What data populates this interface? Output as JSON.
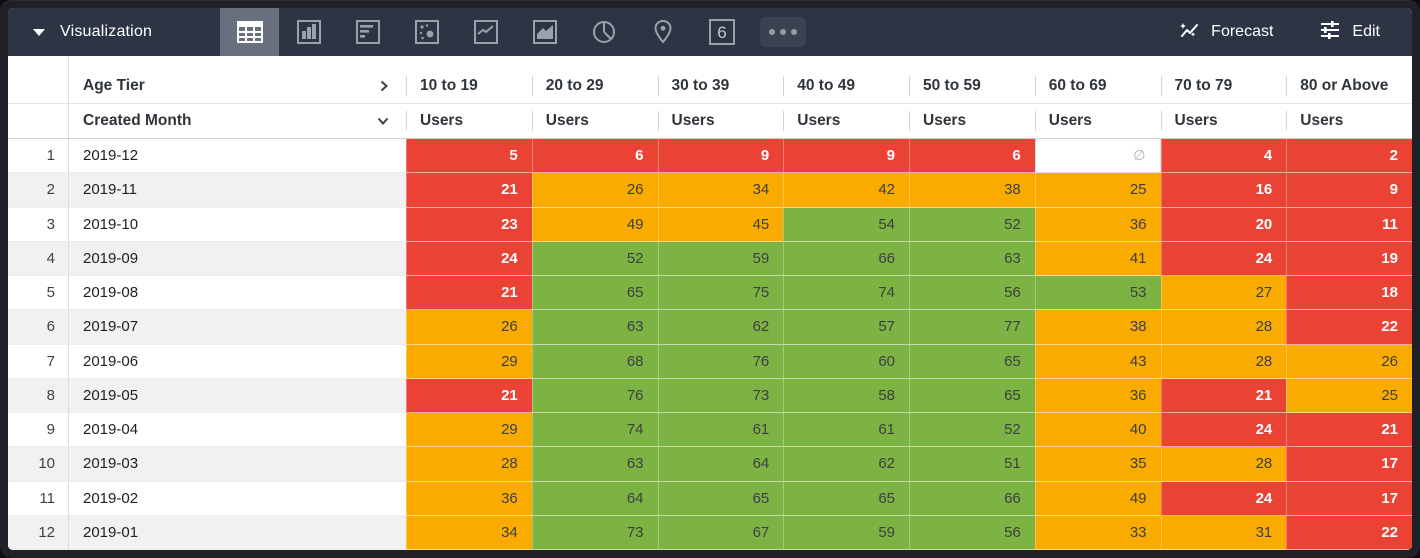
{
  "toolbar": {
    "title": "Visualization",
    "forecast_label": "Forecast",
    "edit_label": "Edit",
    "single_value_icon_number": "6",
    "chart_types": [
      "table",
      "bar",
      "horizontal-bar",
      "scatter",
      "line",
      "area",
      "pie",
      "map",
      "single-value",
      "more"
    ],
    "selected_chart_type": "table"
  },
  "colors": {
    "red": "#ea4335",
    "orange": "#f9ab00",
    "green": "#7cb342",
    "toolbar_bg": "#2d3444",
    "selected_tab_bg": "#68707e"
  },
  "table": {
    "row_dimension_label": "Age Tier",
    "column_dimension_label": "Created Month",
    "measure_label": "Users",
    "null_symbol": "∅",
    "columns": [
      "10 to 19",
      "20 to 29",
      "30 to 39",
      "40 to 49",
      "50 to 59",
      "60 to 69",
      "70 to 79",
      "80 or Above"
    ],
    "rows": [
      {
        "index": "1",
        "month": "2019-12",
        "cells": [
          {
            "v": "5",
            "c": "red"
          },
          {
            "v": "6",
            "c": "red"
          },
          {
            "v": "9",
            "c": "red"
          },
          {
            "v": "9",
            "c": "red"
          },
          {
            "v": "6",
            "c": "red"
          },
          {
            "v": "",
            "c": "null"
          },
          {
            "v": "4",
            "c": "red"
          },
          {
            "v": "2",
            "c": "red"
          }
        ]
      },
      {
        "index": "2",
        "month": "2019-11",
        "cells": [
          {
            "v": "21",
            "c": "red"
          },
          {
            "v": "26",
            "c": "orange"
          },
          {
            "v": "34",
            "c": "orange"
          },
          {
            "v": "42",
            "c": "orange"
          },
          {
            "v": "38",
            "c": "orange"
          },
          {
            "v": "25",
            "c": "orange"
          },
          {
            "v": "16",
            "c": "red"
          },
          {
            "v": "9",
            "c": "red"
          }
        ]
      },
      {
        "index": "3",
        "month": "2019-10",
        "cells": [
          {
            "v": "23",
            "c": "red"
          },
          {
            "v": "49",
            "c": "orange"
          },
          {
            "v": "45",
            "c": "orange"
          },
          {
            "v": "54",
            "c": "green"
          },
          {
            "v": "52",
            "c": "green"
          },
          {
            "v": "36",
            "c": "orange"
          },
          {
            "v": "20",
            "c": "red"
          },
          {
            "v": "11",
            "c": "red"
          }
        ]
      },
      {
        "index": "4",
        "month": "2019-09",
        "cells": [
          {
            "v": "24",
            "c": "red"
          },
          {
            "v": "52",
            "c": "green"
          },
          {
            "v": "59",
            "c": "green"
          },
          {
            "v": "66",
            "c": "green"
          },
          {
            "v": "63",
            "c": "green"
          },
          {
            "v": "41",
            "c": "orange"
          },
          {
            "v": "24",
            "c": "red"
          },
          {
            "v": "19",
            "c": "red"
          }
        ]
      },
      {
        "index": "5",
        "month": "2019-08",
        "cells": [
          {
            "v": "21",
            "c": "red"
          },
          {
            "v": "65",
            "c": "green"
          },
          {
            "v": "75",
            "c": "green"
          },
          {
            "v": "74",
            "c": "green"
          },
          {
            "v": "56",
            "c": "green"
          },
          {
            "v": "53",
            "c": "green"
          },
          {
            "v": "27",
            "c": "orange"
          },
          {
            "v": "18",
            "c": "red"
          }
        ]
      },
      {
        "index": "6",
        "month": "2019-07",
        "cells": [
          {
            "v": "26",
            "c": "orange"
          },
          {
            "v": "63",
            "c": "green"
          },
          {
            "v": "62",
            "c": "green"
          },
          {
            "v": "57",
            "c": "green"
          },
          {
            "v": "77",
            "c": "green"
          },
          {
            "v": "38",
            "c": "orange"
          },
          {
            "v": "28",
            "c": "orange"
          },
          {
            "v": "22",
            "c": "red"
          }
        ]
      },
      {
        "index": "7",
        "month": "2019-06",
        "cells": [
          {
            "v": "29",
            "c": "orange"
          },
          {
            "v": "68",
            "c": "green"
          },
          {
            "v": "76",
            "c": "green"
          },
          {
            "v": "60",
            "c": "green"
          },
          {
            "v": "65",
            "c": "green"
          },
          {
            "v": "43",
            "c": "orange"
          },
          {
            "v": "28",
            "c": "orange"
          },
          {
            "v": "26",
            "c": "orange"
          }
        ]
      },
      {
        "index": "8",
        "month": "2019-05",
        "cells": [
          {
            "v": "21",
            "c": "red"
          },
          {
            "v": "76",
            "c": "green"
          },
          {
            "v": "73",
            "c": "green"
          },
          {
            "v": "58",
            "c": "green"
          },
          {
            "v": "65",
            "c": "green"
          },
          {
            "v": "36",
            "c": "orange"
          },
          {
            "v": "21",
            "c": "red"
          },
          {
            "v": "25",
            "c": "orange"
          }
        ]
      },
      {
        "index": "9",
        "month": "2019-04",
        "cells": [
          {
            "v": "29",
            "c": "orange"
          },
          {
            "v": "74",
            "c": "green"
          },
          {
            "v": "61",
            "c": "green"
          },
          {
            "v": "61",
            "c": "green"
          },
          {
            "v": "52",
            "c": "green"
          },
          {
            "v": "40",
            "c": "orange"
          },
          {
            "v": "24",
            "c": "red"
          },
          {
            "v": "21",
            "c": "red"
          }
        ]
      },
      {
        "index": "10",
        "month": "2019-03",
        "cells": [
          {
            "v": "28",
            "c": "orange"
          },
          {
            "v": "63",
            "c": "green"
          },
          {
            "v": "64",
            "c": "green"
          },
          {
            "v": "62",
            "c": "green"
          },
          {
            "v": "51",
            "c": "green"
          },
          {
            "v": "35",
            "c": "orange"
          },
          {
            "v": "28",
            "c": "orange"
          },
          {
            "v": "17",
            "c": "red"
          }
        ]
      },
      {
        "index": "11",
        "month": "2019-02",
        "cells": [
          {
            "v": "36",
            "c": "orange"
          },
          {
            "v": "64",
            "c": "green"
          },
          {
            "v": "65",
            "c": "green"
          },
          {
            "v": "65",
            "c": "green"
          },
          {
            "v": "66",
            "c": "green"
          },
          {
            "v": "49",
            "c": "orange"
          },
          {
            "v": "24",
            "c": "red"
          },
          {
            "v": "17",
            "c": "red"
          }
        ]
      },
      {
        "index": "12",
        "month": "2019-01",
        "cells": [
          {
            "v": "34",
            "c": "orange"
          },
          {
            "v": "73",
            "c": "green"
          },
          {
            "v": "67",
            "c": "green"
          },
          {
            "v": "59",
            "c": "green"
          },
          {
            "v": "56",
            "c": "green"
          },
          {
            "v": "33",
            "c": "orange"
          },
          {
            "v": "31",
            "c": "orange"
          },
          {
            "v": "22",
            "c": "red"
          }
        ]
      }
    ]
  }
}
